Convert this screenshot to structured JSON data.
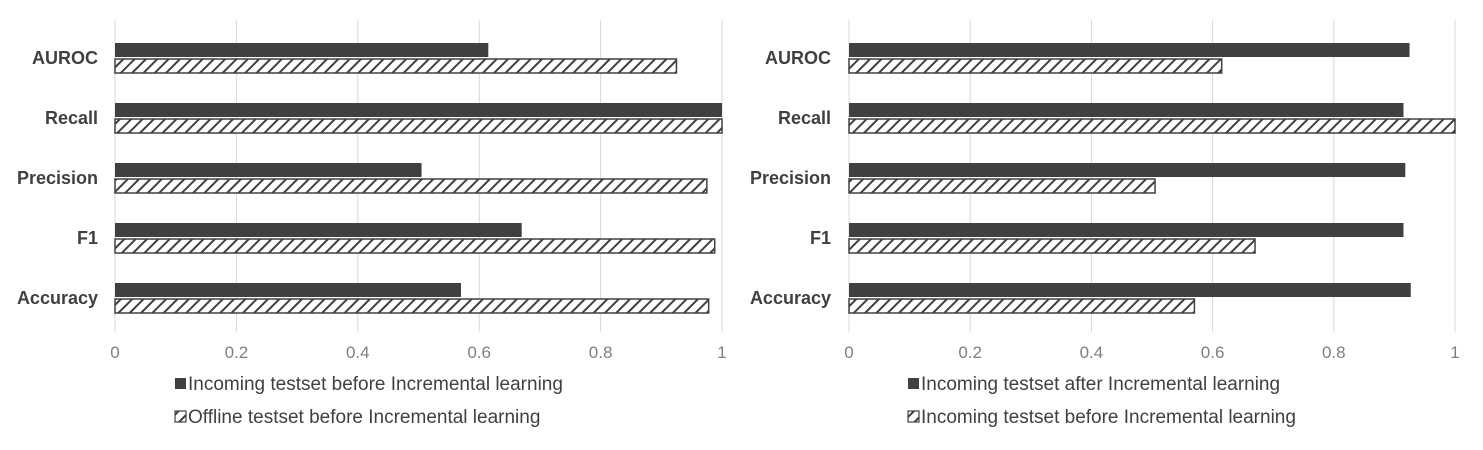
{
  "chart_data": [
    {
      "type": "bar",
      "orientation": "horizontal",
      "categories": [
        "AUROC",
        "Recall",
        "Precision",
        "F1",
        "Accuracy"
      ],
      "series": [
        {
          "name": "Incoming testset before Incremental learning",
          "style": "solid",
          "values": [
            0.615,
            1.0,
            0.505,
            0.67,
            0.57
          ]
        },
        {
          "name": "Offline testset before Incremental learning",
          "style": "hatched",
          "values": [
            0.925,
            1.0,
            0.975,
            0.988,
            0.978
          ]
        }
      ],
      "x_ticks": [
        "0",
        "0.2",
        "0.4",
        "0.6",
        "0.8",
        "1"
      ],
      "xlim": [
        0,
        1
      ],
      "grid": "vertical",
      "legend_position": "bottom"
    },
    {
      "type": "bar",
      "orientation": "horizontal",
      "categories": [
        "AUROC",
        "Recall",
        "Precision",
        "F1",
        "Accuracy"
      ],
      "series": [
        {
          "name": "Incoming testset after Incremental learning",
          "style": "solid",
          "values": [
            0.925,
            0.915,
            0.918,
            0.915,
            0.927
          ]
        },
        {
          "name": "Incoming testset before Incremental learning",
          "style": "hatched",
          "values": [
            0.615,
            1.0,
            0.505,
            0.67,
            0.57
          ]
        }
      ],
      "x_ticks": [
        "0",
        "0.2",
        "0.4",
        "0.6",
        "0.8",
        "1"
      ],
      "xlim": [
        0,
        1
      ],
      "grid": "vertical",
      "legend_position": "bottom"
    }
  ],
  "colors": {
    "solid": "#404040",
    "hatch": "#404040",
    "grid": "#d9d9d9"
  }
}
